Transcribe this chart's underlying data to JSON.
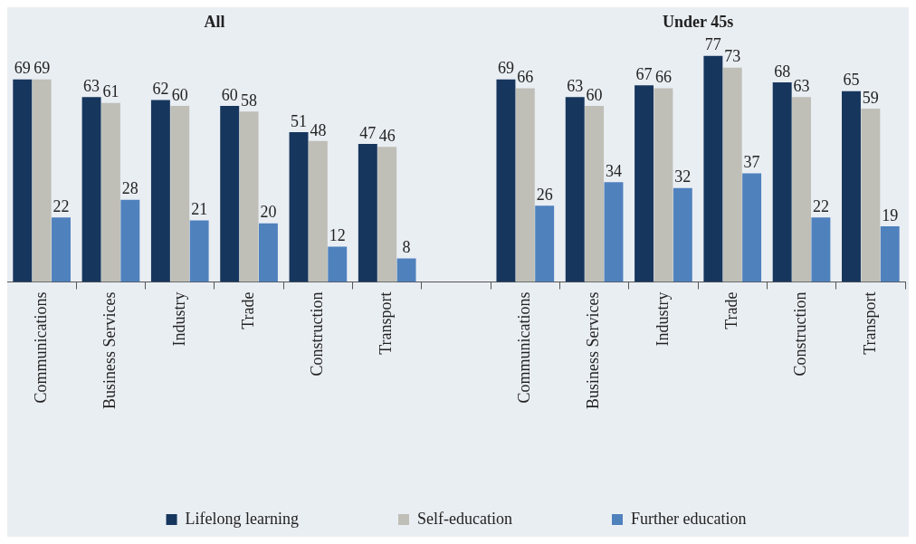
{
  "chart_data": {
    "type": "bar",
    "categories": [
      "Communications",
      "Business Services",
      "Industry",
      "Trade",
      "Construction",
      "Transport",
      null,
      "Communications",
      "Business Services",
      "Industry",
      "Trade",
      "Construction",
      "Transport"
    ],
    "series": [
      {
        "name": "Lifelong learning",
        "color": "#17365d",
        "values": [
          69,
          63,
          62,
          60,
          51,
          47,
          null,
          69,
          63,
          67,
          77,
          68,
          65
        ]
      },
      {
        "name": "Self-education",
        "color": "#bfbfb7",
        "values": [
          69,
          61,
          60,
          58,
          48,
          46,
          null,
          66,
          60,
          66,
          73,
          63,
          59
        ]
      },
      {
        "name": "Further education",
        "color": "#4f81bd",
        "values": [
          22,
          28,
          21,
          20,
          12,
          8,
          null,
          26,
          34,
          32,
          37,
          22,
          19
        ]
      }
    ],
    "annotations": [
      "All",
      "Under 45s"
    ],
    "data_labels": true,
    "grid": false,
    "legend": "bottom"
  }
}
